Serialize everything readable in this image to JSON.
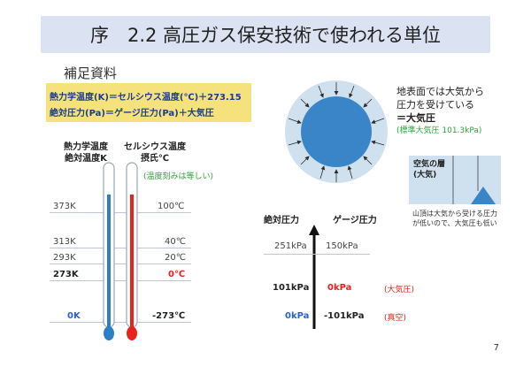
{
  "title": "序　2.2 高圧ガス保安技術で使われる単位",
  "supplement": "補足資料",
  "formulas": [
    "熱力学温度(K)＝セルシウス温度(℃)＋273.15",
    "絶対圧力(Pa)＝ゲージ圧力(Pa)＋大気圧"
  ],
  "thermo": {
    "col_kelvin": [
      "熱力学温度",
      "絶対温度K"
    ],
    "col_celsius": [
      "セルシウス温度",
      "摂氏℃"
    ],
    "note": "(温度刻みは等しい)",
    "rows": [
      {
        "k": "373K",
        "c": "100℃"
      },
      {
        "k": "313K",
        "c": "40℃"
      },
      {
        "k": "293K",
        "c": "20℃"
      },
      {
        "k": "273K",
        "c": "0℃"
      },
      {
        "k": "0K",
        "c": "-273℃"
      }
    ]
  },
  "earth": {
    "desc": [
      "地表面では大気から",
      "圧力を受けている",
      "＝",
      "大気圧"
    ],
    "standard": "(標準大気圧 101.3kPa)"
  },
  "air": {
    "layer_label": [
      "空気の層",
      "(大気)"
    ],
    "caption": [
      "山頂は大気から受ける圧力",
      "が低いので、大気圧も低い"
    ]
  },
  "pressure": {
    "col_abs": "絶対圧力",
    "col_gauge": "ゲージ圧力",
    "rows": [
      {
        "abs": "251kPa",
        "gauge": "150kPa",
        "note": ""
      },
      {
        "abs": "101kPa",
        "gauge": "0kPa",
        "note": "(大気圧)"
      },
      {
        "abs": "0kPa",
        "gauge": "-101kPa",
        "note": "(真空)"
      }
    ]
  },
  "page_number": "7",
  "colors": {
    "banner": "#dbe3f2",
    "formula_bg": "#f5e27d",
    "red": "#e8231c",
    "blue": "#2a62c9",
    "green": "#31a23a",
    "earth": "#3a85c8",
    "atmosphere": "#cfe0ef"
  }
}
